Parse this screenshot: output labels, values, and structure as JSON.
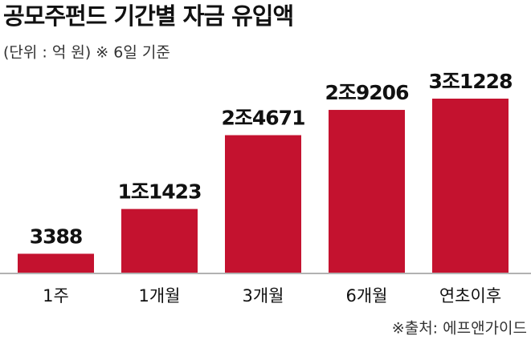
{
  "chart_data": {
    "type": "bar",
    "title": "공모주펀드 기간별 자금 유입액",
    "subtitle": "(단위 : 억 원)  ※ 6일 기준",
    "source": "※출처: 에프앤가이드",
    "categories": [
      "1주",
      "1개월",
      "3개월",
      "6개월",
      "연초이후"
    ],
    "values": [
      3388,
      11423,
      24671,
      29206,
      31228
    ],
    "value_labels": [
      "3388",
      "1조1423",
      "2조4671",
      "2조9206",
      "3조1228"
    ],
    "color": "#c4122f"
  }
}
